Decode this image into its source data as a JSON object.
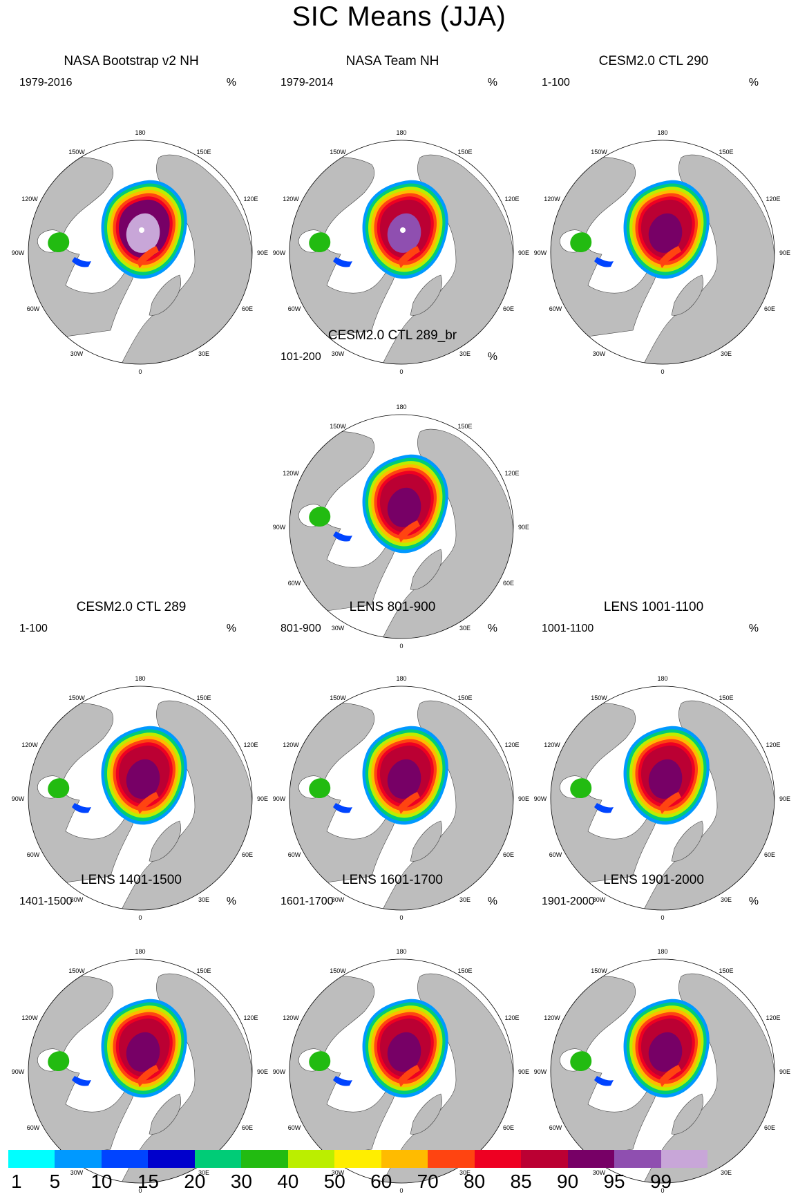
{
  "figure": {
    "title": "SIC Means (JJA)"
  },
  "chart_data": {
    "type": "heatmap",
    "title": "SIC Means (JJA)",
    "projection": "north polar stereographic",
    "variable": "sea ice concentration",
    "units": "%",
    "longitude_labels": [
      "180",
      "150E",
      "120E",
      "90E",
      "60E",
      "30E",
      "0",
      "30W",
      "60W",
      "90W",
      "120W",
      "150W"
    ],
    "colorbar": {
      "ticks": [
        "1",
        "5",
        "10",
        "15",
        "20",
        "30",
        "40",
        "50",
        "60",
        "70",
        "80",
        "85",
        "90",
        "95",
        "99"
      ],
      "colors": [
        "#00ffff",
        "#0099ff",
        "#0044ff",
        "#0000cc",
        "#00cc77",
        "#22bb11",
        "#bbee00",
        "#ffee00",
        "#ffbb00",
        "#ff4411",
        "#ee0022",
        "#bb0033",
        "#770066",
        "#8f4fb0",
        "#c8a6d8"
      ]
    },
    "panels": [
      {
        "title": "NASA Bootstrap v2 NH",
        "period": "1979-2016",
        "unit": "%",
        "core_class": 15,
        "pack_class": 12,
        "hole": true
      },
      {
        "title": "NASA Team NH",
        "period": "1979-2014",
        "unit": "%",
        "core_class": 13,
        "pack_class": 11,
        "hole": true
      },
      {
        "title": "CESM2.0 CTL 290",
        "period": "1-100",
        "unit": "%",
        "core_class": 12,
        "pack_class": 11,
        "hole": false
      },
      {
        "title": "CESM2.0 CTL 289_br",
        "period": "101-200",
        "unit": "%",
        "core_class": 12,
        "pack_class": 11,
        "hole": false
      },
      {
        "title": "CESM2.0 CTL 289",
        "period": "1-100",
        "unit": "%",
        "core_class": 12,
        "pack_class": 11,
        "hole": false
      },
      {
        "title": "LENS 801-900",
        "period": "801-900",
        "unit": "%",
        "core_class": 12,
        "pack_class": 11,
        "hole": false
      },
      {
        "title": "LENS 1001-1100",
        "period": "1001-1100",
        "unit": "%",
        "core_class": 12,
        "pack_class": 11,
        "hole": false
      },
      {
        "title": "LENS 1401-1500",
        "period": "1401-1500",
        "unit": "%",
        "core_class": 12,
        "pack_class": 11,
        "hole": false
      },
      {
        "title": "LENS 1601-1700",
        "period": "1601-1700",
        "unit": "%",
        "core_class": 12,
        "pack_class": 11,
        "hole": false
      },
      {
        "title": "LENS 1901-2000",
        "period": "1901-2000",
        "unit": "%",
        "core_class": 12,
        "pack_class": 11,
        "hole": false
      }
    ]
  }
}
